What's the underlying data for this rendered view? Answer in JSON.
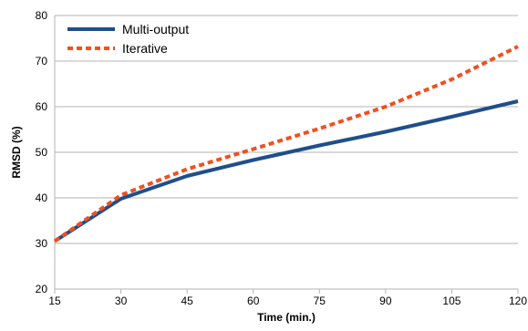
{
  "chart_data": {
    "type": "line",
    "title": "",
    "xlabel": "Time (min.)",
    "ylabel": "RMSD (%)",
    "x": [
      15,
      30,
      45,
      60,
      75,
      90,
      105,
      120
    ],
    "x_ticks": [
      15,
      30,
      45,
      60,
      75,
      90,
      105,
      120
    ],
    "y_ticks": [
      20,
      30,
      40,
      50,
      60,
      70,
      80
    ],
    "xlim": [
      15,
      120
    ],
    "ylim": [
      20,
      80
    ],
    "grid": "horizontal",
    "legend_position": "top-left",
    "series": [
      {
        "name": "Multi-output",
        "color": "#1f4e8c",
        "style": "solid",
        "values": [
          30.5,
          39.8,
          44.8,
          48.3,
          51.5,
          54.5,
          57.8,
          61.2
        ]
      },
      {
        "name": "Iterative",
        "color": "#f0501e",
        "style": "dotted",
        "values": [
          30.5,
          40.6,
          46.3,
          50.7,
          55.2,
          60.0,
          66.0,
          73.2
        ]
      }
    ]
  }
}
